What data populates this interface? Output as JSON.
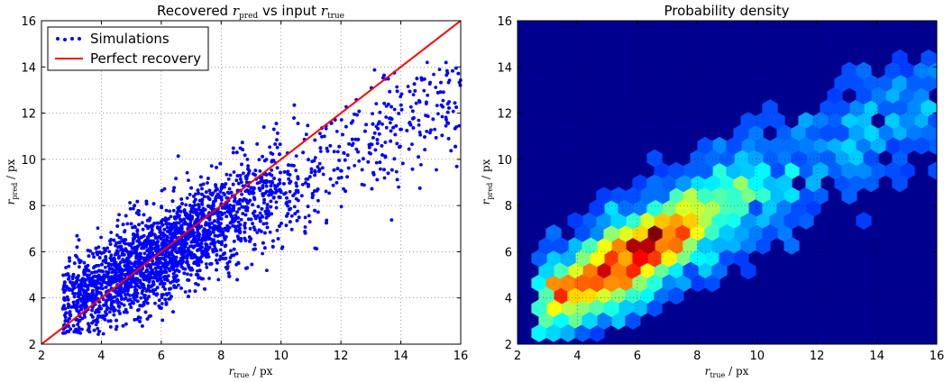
{
  "chart_data": [
    {
      "type": "scatter",
      "title": "Recovered r_pred vs input r_true",
      "xlabel": "r_true / px",
      "ylabel": "r_pred / px",
      "xlim": [
        2,
        16
      ],
      "ylim": [
        2,
        16
      ],
      "x_ticks": [
        "2",
        "4",
        "6",
        "8",
        "10",
        "12",
        "14",
        "16"
      ],
      "y_ticks": [
        "2",
        "4",
        "6",
        "8",
        "10",
        "12",
        "14",
        "16"
      ],
      "grid": true,
      "legend_position": "top-left",
      "series": [
        {
          "name": "Simulations",
          "kind": "scatter",
          "color": "#0000ff",
          "distribution": {
            "x_range": [
              2.7,
              16.0
            ],
            "relation": "y ≈ 0.72·x + 1.6",
            "spread_sd": 1.05,
            "peak_x": 5.5
          }
        },
        {
          "name": "Perfect recovery",
          "kind": "line",
          "color": "#ff0000",
          "x": [
            2,
            16
          ],
          "y": [
            2,
            16
          ]
        }
      ]
    },
    {
      "type": "heatmap",
      "subtype": "hexbin",
      "title": "Probability density",
      "xlabel": "r_true / px",
      "ylabel": "r_pred / px",
      "xlim": [
        2,
        16
      ],
      "ylim": [
        2,
        16
      ],
      "x_ticks": [
        "2",
        "4",
        "6",
        "8",
        "10",
        "12",
        "14",
        "16"
      ],
      "y_ticks": [
        "2",
        "4",
        "6",
        "8",
        "10",
        "12",
        "14",
        "16"
      ],
      "grid": true,
      "colormap": "jet",
      "background": "#00008f",
      "density_peak": {
        "x": 5.8,
        "y": 5.8
      }
    }
  ]
}
